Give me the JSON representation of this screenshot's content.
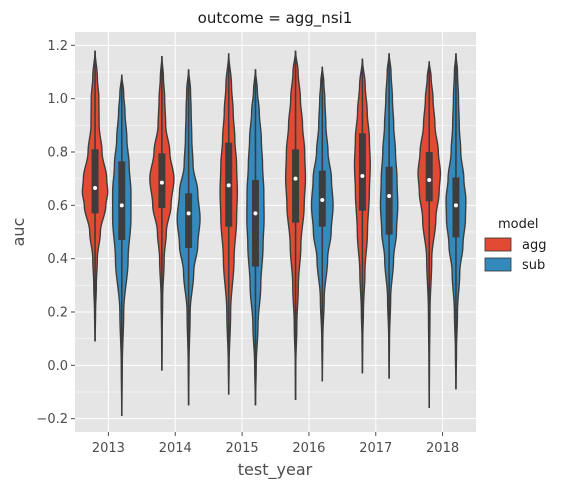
{
  "chart_data": {
    "type": "violin",
    "title": "outcome = agg_nsi1",
    "xlabel": "test_year",
    "ylabel": "auc",
    "categories": [
      "2013",
      "2014",
      "2015",
      "2016",
      "2017",
      "2018"
    ],
    "ylim": [
      -0.25,
      1.25
    ],
    "yticks": [
      -0.2,
      0.0,
      0.2,
      0.4,
      0.6,
      0.8,
      1.0,
      1.2
    ],
    "ytick_labels": [
      "−0.2",
      "0.0",
      "0.2",
      "0.4",
      "0.6",
      "0.8",
      "1.0",
      "1.2"
    ],
    "grid": true,
    "legend": {
      "title": "model",
      "position": "right",
      "entries": [
        {
          "name": "agg",
          "color": "#E24A33"
        },
        {
          "name": "sub",
          "color": "#348ABD"
        }
      ]
    },
    "series": [
      {
        "name": "agg",
        "color": "#E24A33",
        "violins": [
          {
            "category": "2013",
            "min": 0.09,
            "max": 1.18,
            "q1": 0.57,
            "median": 0.665,
            "q3": 0.81,
            "profile": [
              [
                0.09,
                0.0
              ],
              [
                0.2,
                0.04
              ],
              [
                0.3,
                0.1
              ],
              [
                0.4,
                0.18
              ],
              [
                0.5,
                0.42
              ],
              [
                0.6,
                0.85
              ],
              [
                0.65,
                1.0
              ],
              [
                0.7,
                0.92
              ],
              [
                0.8,
                0.55
              ],
              [
                0.9,
                0.32
              ],
              [
                1.0,
                0.3
              ],
              [
                1.08,
                0.18
              ],
              [
                1.18,
                0.0
              ]
            ]
          },
          {
            "category": "2014",
            "min": -0.02,
            "max": 1.16,
            "q1": 0.59,
            "median": 0.685,
            "q3": 0.795,
            "profile": [
              [
                -0.02,
                0.0
              ],
              [
                0.1,
                0.02
              ],
              [
                0.25,
                0.06
              ],
              [
                0.4,
                0.18
              ],
              [
                0.5,
                0.35
              ],
              [
                0.6,
                0.72
              ],
              [
                0.7,
                0.95
              ],
              [
                0.8,
                0.62
              ],
              [
                0.9,
                0.3
              ],
              [
                1.0,
                0.22
              ],
              [
                1.08,
                0.12
              ],
              [
                1.16,
                0.0
              ]
            ]
          },
          {
            "category": "2015",
            "min": -0.11,
            "max": 1.17,
            "q1": 0.52,
            "median": 0.675,
            "q3": 0.835,
            "profile": [
              [
                -0.11,
                0.0
              ],
              [
                0.0,
                0.03
              ],
              [
                0.2,
                0.15
              ],
              [
                0.4,
                0.42
              ],
              [
                0.55,
                0.62
              ],
              [
                0.65,
                0.68
              ],
              [
                0.75,
                0.62
              ],
              [
                0.85,
                0.48
              ],
              [
                0.95,
                0.35
              ],
              [
                1.05,
                0.22
              ],
              [
                1.17,
                0.0
              ]
            ]
          },
          {
            "category": "2016",
            "min": -0.13,
            "max": 1.18,
            "q1": 0.535,
            "median": 0.7,
            "q3": 0.81,
            "profile": [
              [
                -0.13,
                0.0
              ],
              [
                0.0,
                0.02
              ],
              [
                0.15,
                0.1
              ],
              [
                0.3,
                0.22
              ],
              [
                0.45,
                0.42
              ],
              [
                0.6,
                0.68
              ],
              [
                0.7,
                0.78
              ],
              [
                0.8,
                0.72
              ],
              [
                0.9,
                0.55
              ],
              [
                1.0,
                0.38
              ],
              [
                1.1,
                0.2
              ],
              [
                1.18,
                0.0
              ]
            ]
          },
          {
            "category": "2017",
            "min": -0.03,
            "max": 1.15,
            "q1": 0.58,
            "median": 0.71,
            "q3": 0.87,
            "profile": [
              [
                -0.03,
                0.0
              ],
              [
                0.1,
                0.03
              ],
              [
                0.2,
                0.08
              ],
              [
                0.35,
                0.2
              ],
              [
                0.5,
                0.4
              ],
              [
                0.65,
                0.55
              ],
              [
                0.75,
                0.62
              ],
              [
                0.85,
                0.55
              ],
              [
                0.95,
                0.38
              ],
              [
                1.05,
                0.22
              ],
              [
                1.15,
                0.0
              ]
            ]
          },
          {
            "category": "2018",
            "min": -0.16,
            "max": 1.14,
            "q1": 0.615,
            "median": 0.695,
            "q3": 0.8,
            "profile": [
              [
                -0.16,
                0.0
              ],
              [
                0.0,
                0.02
              ],
              [
                0.2,
                0.06
              ],
              [
                0.4,
                0.2
              ],
              [
                0.55,
                0.52
              ],
              [
                0.65,
                0.78
              ],
              [
                0.72,
                0.88
              ],
              [
                0.8,
                0.72
              ],
              [
                0.9,
                0.45
              ],
              [
                1.0,
                0.3
              ],
              [
                1.08,
                0.15
              ],
              [
                1.14,
                0.0
              ]
            ]
          }
        ]
      },
      {
        "name": "sub",
        "color": "#348ABD",
        "violins": [
          {
            "category": "2013",
            "min": -0.19,
            "max": 1.09,
            "q1": 0.47,
            "median": 0.6,
            "q3": 0.765,
            "profile": [
              [
                -0.19,
                0.0
              ],
              [
                0.0,
                0.04
              ],
              [
                0.2,
                0.15
              ],
              [
                0.4,
                0.5
              ],
              [
                0.55,
                0.72
              ],
              [
                0.65,
                0.72
              ],
              [
                0.75,
                0.58
              ],
              [
                0.85,
                0.4
              ],
              [
                0.95,
                0.25
              ],
              [
                1.02,
                0.15
              ],
              [
                1.09,
                0.0
              ]
            ]
          },
          {
            "category": "2014",
            "min": -0.15,
            "max": 1.11,
            "q1": 0.44,
            "median": 0.57,
            "q3": 0.645,
            "profile": [
              [
                -0.15,
                0.0
              ],
              [
                0.0,
                0.03
              ],
              [
                0.2,
                0.12
              ],
              [
                0.35,
                0.4
              ],
              [
                0.45,
                0.72
              ],
              [
                0.55,
                0.9
              ],
              [
                0.65,
                0.72
              ],
              [
                0.75,
                0.35
              ],
              [
                0.85,
                0.25
              ],
              [
                0.95,
                0.2
              ],
              [
                1.03,
                0.15
              ],
              [
                1.11,
                0.0
              ]
            ]
          },
          {
            "category": "2015",
            "min": -0.15,
            "max": 1.11,
            "q1": 0.37,
            "median": 0.57,
            "q3": 0.695,
            "profile": [
              [
                -0.15,
                0.0
              ],
              [
                0.0,
                0.06
              ],
              [
                0.15,
                0.2
              ],
              [
                0.3,
                0.42
              ],
              [
                0.45,
                0.6
              ],
              [
                0.55,
                0.68
              ],
              [
                0.65,
                0.66
              ],
              [
                0.75,
                0.56
              ],
              [
                0.85,
                0.46
              ],
              [
                0.95,
                0.3
              ],
              [
                1.03,
                0.15
              ],
              [
                1.11,
                0.0
              ]
            ]
          },
          {
            "category": "2016",
            "min": -0.06,
            "max": 1.12,
            "q1": 0.52,
            "median": 0.62,
            "q3": 0.73,
            "profile": [
              [
                -0.06,
                0.0
              ],
              [
                0.1,
                0.04
              ],
              [
                0.25,
                0.15
              ],
              [
                0.4,
                0.42
              ],
              [
                0.5,
                0.7
              ],
              [
                0.6,
                0.85
              ],
              [
                0.7,
                0.72
              ],
              [
                0.8,
                0.45
              ],
              [
                0.9,
                0.28
              ],
              [
                1.0,
                0.2
              ],
              [
                1.06,
                0.12
              ],
              [
                1.12,
                0.0
              ]
            ]
          },
          {
            "category": "2017",
            "min": -0.05,
            "max": 1.17,
            "q1": 0.49,
            "median": 0.635,
            "q3": 0.745,
            "profile": [
              [
                -0.05,
                0.0
              ],
              [
                0.1,
                0.03
              ],
              [
                0.25,
                0.12
              ],
              [
                0.4,
                0.35
              ],
              [
                0.5,
                0.58
              ],
              [
                0.6,
                0.68
              ],
              [
                0.7,
                0.62
              ],
              [
                0.8,
                0.5
              ],
              [
                0.9,
                0.36
              ],
              [
                1.0,
                0.26
              ],
              [
                1.1,
                0.15
              ],
              [
                1.17,
                0.0
              ]
            ]
          },
          {
            "category": "2018",
            "min": -0.09,
            "max": 1.17,
            "q1": 0.48,
            "median": 0.6,
            "q3": 0.705,
            "profile": [
              [
                -0.09,
                0.0
              ],
              [
                0.05,
                0.04
              ],
              [
                0.2,
                0.12
              ],
              [
                0.35,
                0.3
              ],
              [
                0.45,
                0.55
              ],
              [
                0.55,
                0.75
              ],
              [
                0.62,
                0.78
              ],
              [
                0.7,
                0.62
              ],
              [
                0.8,
                0.38
              ],
              [
                0.9,
                0.26
              ],
              [
                1.0,
                0.2
              ],
              [
                1.1,
                0.12
              ],
              [
                1.17,
                0.0
              ]
            ]
          }
        ]
      }
    ]
  }
}
